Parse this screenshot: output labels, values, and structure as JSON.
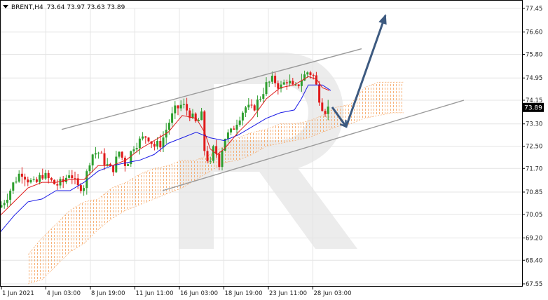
{
  "header": {
    "symbol": "BRENT,H4",
    "ohlc": "73.64 73.97 73.63 73.89",
    "menu_icon": "triangle-down-icon"
  },
  "price_tag": "73.89",
  "colors": {
    "bull": "#2e9e2e",
    "bear": "#e01b1b",
    "tenkan": "#e01b1b",
    "kijun": "#1a1ae6",
    "cloud": "#f5a461",
    "channel": "#9a9a9a",
    "arrow": "#3d5a80",
    "watermark": "#e6e6e6"
  },
  "chart_data": {
    "type": "candlestick",
    "symbol": "BRENT",
    "timeframe": "H4",
    "ylim": [
      67.55,
      77.45
    ],
    "y_ticks": [
      "77.45",
      "76.60",
      "75.80",
      "74.95",
      "74.15",
      "73.30",
      "72.50",
      "71.70",
      "70.85",
      "70.05",
      "69.20",
      "68.40",
      "67.55"
    ],
    "x_ticks": [
      "1 Jun 2021",
      "4 Jun 03:00",
      "8 Jun 19:00",
      "11 Jun 11:00",
      "16 Jun 03:00",
      "18 Jun 19:00",
      "23 Jun 11:00",
      "28 Jun 03:00"
    ],
    "last_price": 73.89,
    "close_path": [
      [
        0,
        70.3
      ],
      [
        10,
        70.7
      ],
      [
        20,
        71.2
      ],
      [
        30,
        71.6
      ],
      [
        40,
        71.3
      ],
      [
        50,
        71.1
      ],
      [
        60,
        71.5
      ],
      [
        70,
        71.3
      ],
      [
        80,
        71.1
      ],
      [
        90,
        71.2
      ],
      [
        100,
        71.6
      ],
      [
        110,
        71.0
      ],
      [
        120,
        71.1
      ],
      [
        130,
        72.2
      ],
      [
        140,
        72.3
      ],
      [
        150,
        71.9
      ],
      [
        160,
        71.6
      ],
      [
        170,
        72.3
      ],
      [
        180,
        71.8
      ],
      [
        190,
        72.5
      ],
      [
        200,
        72.7
      ],
      [
        210,
        72.9
      ],
      [
        220,
        72.5
      ],
      [
        230,
        72.6
      ],
      [
        240,
        73.3
      ],
      [
        250,
        73.8
      ],
      [
        260,
        74.0
      ],
      [
        270,
        73.7
      ],
      [
        280,
        73.3
      ],
      [
        288,
        73.6
      ],
      [
        292,
        72.3
      ],
      [
        300,
        71.8
      ],
      [
        306,
        72.6
      ],
      [
        312,
        71.8
      ],
      [
        320,
        72.8
      ],
      [
        330,
        73.0
      ],
      [
        340,
        73.5
      ],
      [
        350,
        73.9
      ],
      [
        360,
        73.8
      ],
      [
        370,
        74.2
      ],
      [
        380,
        74.7
      ],
      [
        390,
        74.9
      ],
      [
        400,
        74.6
      ],
      [
        410,
        74.9
      ],
      [
        420,
        74.5
      ],
      [
        430,
        74.9
      ],
      [
        440,
        75.2
      ],
      [
        448,
        75.0
      ],
      [
        452,
        74.6
      ],
      [
        458,
        74.0
      ],
      [
        464,
        73.8
      ],
      [
        470,
        73.89
      ]
    ],
    "tenkan_path": [
      [
        0,
        70.0
      ],
      [
        20,
        70.5
      ],
      [
        40,
        71.0
      ],
      [
        60,
        71.2
      ],
      [
        80,
        71.2
      ],
      [
        100,
        71.3
      ],
      [
        120,
        71.3
      ],
      [
        140,
        71.8
      ],
      [
        160,
        71.8
      ],
      [
        180,
        72.0
      ],
      [
        200,
        72.4
      ],
      [
        220,
        72.7
      ],
      [
        240,
        73.0
      ],
      [
        260,
        73.6
      ],
      [
        280,
        73.5
      ],
      [
        292,
        73.0
      ],
      [
        300,
        72.4
      ],
      [
        310,
        72.2
      ],
      [
        320,
        72.4
      ],
      [
        340,
        73.0
      ],
      [
        360,
        73.5
      ],
      [
        380,
        74.2
      ],
      [
        400,
        74.6
      ],
      [
        420,
        74.7
      ],
      [
        440,
        75.0
      ],
      [
        452,
        74.9
      ],
      [
        460,
        74.6
      ],
      [
        470,
        74.5
      ]
    ],
    "kijun_path": [
      [
        0,
        69.4
      ],
      [
        20,
        70.0
      ],
      [
        40,
        70.5
      ],
      [
        60,
        70.6
      ],
      [
        80,
        70.9
      ],
      [
        100,
        70.9
      ],
      [
        120,
        71.2
      ],
      [
        140,
        71.6
      ],
      [
        160,
        71.8
      ],
      [
        180,
        71.9
      ],
      [
        200,
        72.0
      ],
      [
        220,
        72.2
      ],
      [
        240,
        72.6
      ],
      [
        260,
        72.8
      ],
      [
        280,
        73.0
      ],
      [
        300,
        72.8
      ],
      [
        320,
        72.7
      ],
      [
        340,
        72.9
      ],
      [
        360,
        73.2
      ],
      [
        380,
        73.5
      ],
      [
        400,
        73.7
      ],
      [
        420,
        73.8
      ],
      [
        430,
        74.2
      ],
      [
        440,
        74.7
      ],
      [
        460,
        74.7
      ],
      [
        472,
        74.5
      ]
    ],
    "cloud_upper": [
      [
        40,
        68.6
      ],
      [
        60,
        69.2
      ],
      [
        80,
        69.7
      ],
      [
        100,
        70.2
      ],
      [
        120,
        70.5
      ],
      [
        140,
        70.6
      ],
      [
        160,
        71.0
      ],
      [
        180,
        71.2
      ],
      [
        200,
        71.5
      ],
      [
        220,
        71.7
      ],
      [
        240,
        71.8
      ],
      [
        260,
        72.0
      ],
      [
        280,
        72.0
      ],
      [
        300,
        72.2
      ],
      [
        320,
        72.5
      ],
      [
        340,
        72.8
      ],
      [
        360,
        73.0
      ],
      [
        380,
        73.1
      ],
      [
        400,
        73.3
      ],
      [
        420,
        73.3
      ],
      [
        440,
        73.4
      ],
      [
        460,
        73.6
      ],
      [
        480,
        73.9
      ],
      [
        500,
        74.0
      ],
      [
        520,
        74.6
      ],
      [
        540,
        74.8
      ],
      [
        560,
        74.8
      ],
      [
        576,
        74.8
      ]
    ],
    "cloud_lower": [
      [
        40,
        67.55
      ],
      [
        60,
        67.7
      ],
      [
        80,
        68.2
      ],
      [
        100,
        68.7
      ],
      [
        120,
        69.0
      ],
      [
        140,
        69.5
      ],
      [
        160,
        69.9
      ],
      [
        180,
        70.2
      ],
      [
        200,
        70.4
      ],
      [
        220,
        70.6
      ],
      [
        240,
        70.8
      ],
      [
        260,
        71.0
      ],
      [
        280,
        71.3
      ],
      [
        300,
        71.6
      ],
      [
        320,
        71.9
      ],
      [
        340,
        72.0
      ],
      [
        360,
        72.2
      ],
      [
        380,
        72.5
      ],
      [
        400,
        72.6
      ],
      [
        420,
        72.7
      ],
      [
        440,
        72.8
      ],
      [
        460,
        73.0
      ],
      [
        480,
        73.2
      ],
      [
        500,
        73.3
      ],
      [
        520,
        73.5
      ],
      [
        540,
        73.6
      ],
      [
        560,
        73.7
      ],
      [
        576,
        73.7
      ]
    ],
    "channel_upper": [
      [
        88,
        73.1
      ],
      [
        516,
        76.0
      ]
    ],
    "channel_lower": [
      [
        232,
        70.9
      ],
      [
        662,
        74.15
      ]
    ],
    "forecast_arrow": [
      [
        474,
        73.9
      ],
      [
        494,
        73.2
      ],
      [
        550,
        77.2
      ]
    ],
    "grid": true
  }
}
